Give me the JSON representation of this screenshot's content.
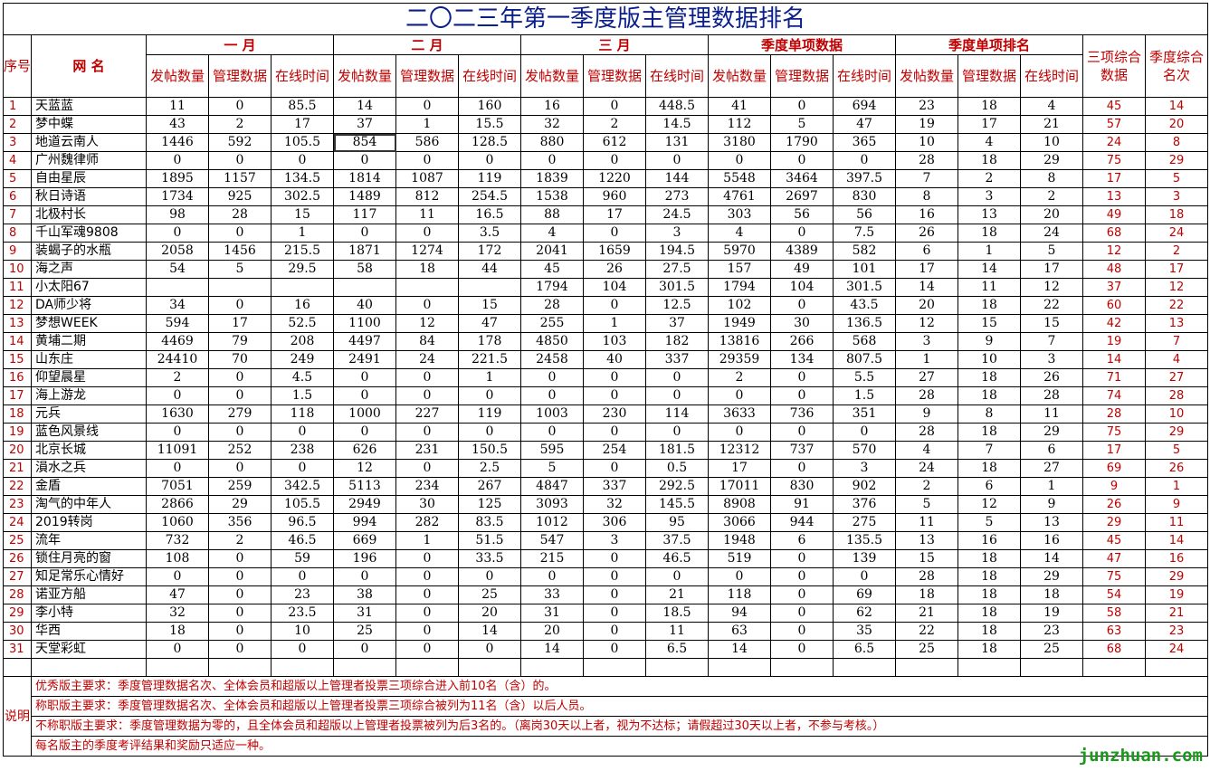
{
  "title": "二〇二三年第一季度版主管理数据排名",
  "headers": {
    "index": "序号",
    "name": "网  名",
    "groups": [
      "一    月",
      "二    月",
      "三    月",
      "季度单项数据",
      "季度单项排名"
    ],
    "composite": "三项综合数据",
    "season_rank": "季度综合名次",
    "sub": [
      "发帖数量",
      "管理数据",
      "在线时间"
    ]
  },
  "rows": [
    [
      "1",
      "天蓝蓝",
      "11",
      "0",
      "85.5",
      "14",
      "0",
      "160",
      "16",
      "0",
      "448.5",
      "41",
      "0",
      "694",
      "23",
      "18",
      "4",
      "45",
      "14"
    ],
    [
      "2",
      "梦中蝶",
      "43",
      "2",
      "17",
      "37",
      "1",
      "15.5",
      "32",
      "2",
      "14.5",
      "112",
      "5",
      "47",
      "19",
      "17",
      "21",
      "57",
      "20"
    ],
    [
      "3",
      "地道云南人",
      "1446",
      "592",
      "105.5",
      "854",
      "586",
      "128.5",
      "880",
      "612",
      "131",
      "3180",
      "1790",
      "365",
      "10",
      "4",
      "10",
      "24",
      "8"
    ],
    [
      "4",
      "广州魏律师",
      "0",
      "0",
      "0",
      "0",
      "0",
      "0",
      "0",
      "0",
      "0",
      "0",
      "0",
      "0",
      "28",
      "18",
      "29",
      "75",
      "29"
    ],
    [
      "5",
      "自由星辰",
      "1895",
      "1157",
      "134.5",
      "1814",
      "1087",
      "119",
      "1839",
      "1220",
      "144",
      "5548",
      "3464",
      "397.5",
      "7",
      "2",
      "8",
      "17",
      "5"
    ],
    [
      "6",
      "秋日诗语",
      "1734",
      "925",
      "302.5",
      "1489",
      "812",
      "254.5",
      "1538",
      "960",
      "273",
      "4761",
      "2697",
      "830",
      "8",
      "3",
      "2",
      "13",
      "3"
    ],
    [
      "7",
      "北极村长",
      "98",
      "28",
      "15",
      "117",
      "11",
      "16.5",
      "88",
      "17",
      "24.5",
      "303",
      "56",
      "56",
      "16",
      "13",
      "20",
      "49",
      "18"
    ],
    [
      "8",
      "千山军魂9808",
      "0",
      "0",
      "1",
      "0",
      "0",
      "3.5",
      "4",
      "0",
      "3",
      "4",
      "0",
      "7.5",
      "26",
      "18",
      "24",
      "68",
      "24"
    ],
    [
      "9",
      "装蝎子的水瓶",
      "2058",
      "1456",
      "215.5",
      "1871",
      "1274",
      "172",
      "2041",
      "1659",
      "194.5",
      "5970",
      "4389",
      "582",
      "6",
      "1",
      "5",
      "12",
      "2"
    ],
    [
      "10",
      "海之声",
      "54",
      "5",
      "29.5",
      "58",
      "18",
      "44",
      "45",
      "26",
      "27.5",
      "157",
      "49",
      "101",
      "17",
      "14",
      "17",
      "48",
      "17"
    ],
    [
      "11",
      "小太阳67",
      "",
      "",
      "",
      "",
      "",
      "",
      "1794",
      "104",
      "301.5",
      "1794",
      "104",
      "301.5",
      "14",
      "11",
      "12",
      "37",
      "12"
    ],
    [
      "12",
      "DA师少将",
      "34",
      "0",
      "16",
      "40",
      "0",
      "15",
      "28",
      "0",
      "12.5",
      "102",
      "0",
      "43.5",
      "20",
      "18",
      "22",
      "60",
      "22"
    ],
    [
      "13",
      "梦想WEEK",
      "594",
      "17",
      "52.5",
      "1100",
      "12",
      "47",
      "255",
      "1",
      "37",
      "1949",
      "30",
      "136.5",
      "12",
      "15",
      "15",
      "42",
      "13"
    ],
    [
      "14",
      "黄埔二期",
      "4469",
      "79",
      "208",
      "4497",
      "84",
      "178",
      "4850",
      "103",
      "182",
      "13816",
      "266",
      "568",
      "3",
      "9",
      "7",
      "19",
      "7"
    ],
    [
      "15",
      "山东庄",
      "24410",
      "70",
      "249",
      "2491",
      "24",
      "221.5",
      "2458",
      "40",
      "337",
      "29359",
      "134",
      "807.5",
      "1",
      "10",
      "3",
      "14",
      "4"
    ],
    [
      "16",
      "仰望晨星",
      "2",
      "0",
      "4.5",
      "0",
      "0",
      "1",
      "0",
      "0",
      "0",
      "2",
      "0",
      "5.5",
      "27",
      "18",
      "26",
      "71",
      "27"
    ],
    [
      "17",
      "海上游龙",
      "0",
      "0",
      "1.5",
      "0",
      "0",
      "0",
      "0",
      "0",
      "0",
      "0",
      "0",
      "1.5",
      "28",
      "18",
      "28",
      "74",
      "28"
    ],
    [
      "18",
      "元兵",
      "1630",
      "279",
      "118",
      "1000",
      "227",
      "119",
      "1003",
      "230",
      "114",
      "3633",
      "736",
      "351",
      "9",
      "8",
      "11",
      "28",
      "10"
    ],
    [
      "19",
      "蓝色风景线",
      "0",
      "0",
      "0",
      "0",
      "0",
      "0",
      "0",
      "0",
      "0",
      "0",
      "0",
      "0",
      "28",
      "18",
      "29",
      "75",
      "29"
    ],
    [
      "20",
      "北京长城",
      "11091",
      "252",
      "238",
      "626",
      "231",
      "150.5",
      "595",
      "254",
      "181.5",
      "12312",
      "737",
      "570",
      "4",
      "7",
      "6",
      "17",
      "5"
    ],
    [
      "21",
      "溳水之兵",
      "0",
      "0",
      "0",
      "12",
      "0",
      "2.5",
      "5",
      "0",
      "0.5",
      "17",
      "0",
      "3",
      "24",
      "18",
      "27",
      "69",
      "26"
    ],
    [
      "22",
      "金盾",
      "7051",
      "259",
      "342.5",
      "5113",
      "234",
      "267",
      "4847",
      "337",
      "292.5",
      "17011",
      "830",
      "902",
      "2",
      "6",
      "1",
      "9",
      "1"
    ],
    [
      "23",
      "淘气的中年人",
      "2866",
      "29",
      "105.5",
      "2949",
      "30",
      "125",
      "3093",
      "32",
      "145.5",
      "8908",
      "91",
      "376",
      "5",
      "12",
      "9",
      "26",
      "9"
    ],
    [
      "24",
      "2019转岗",
      "1060",
      "356",
      "96.5",
      "994",
      "282",
      "83.5",
      "1012",
      "306",
      "95",
      "3066",
      "944",
      "275",
      "11",
      "5",
      "13",
      "29",
      "11"
    ],
    [
      "25",
      "流年",
      "732",
      "2",
      "46.5",
      "669",
      "1",
      "51.5",
      "547",
      "3",
      "37.5",
      "1948",
      "6",
      "135.5",
      "13",
      "16",
      "16",
      "45",
      "14"
    ],
    [
      "26",
      "锁住月亮的窗",
      "108",
      "0",
      "59",
      "196",
      "0",
      "33.5",
      "215",
      "0",
      "46.5",
      "519",
      "0",
      "139",
      "15",
      "18",
      "14",
      "47",
      "16"
    ],
    [
      "27",
      "知足常乐心情好",
      "0",
      "0",
      "0",
      "0",
      "0",
      "0",
      "0",
      "0",
      "0",
      "0",
      "0",
      "0",
      "28",
      "18",
      "29",
      "75",
      "29"
    ],
    [
      "28",
      "诺亚方船",
      "47",
      "0",
      "23",
      "38",
      "0",
      "25",
      "33",
      "0",
      "21",
      "118",
      "0",
      "69",
      "18",
      "18",
      "18",
      "54",
      "19"
    ],
    [
      "29",
      "李小特",
      "32",
      "0",
      "23.5",
      "31",
      "0",
      "20",
      "31",
      "0",
      "18.5",
      "94",
      "0",
      "62",
      "21",
      "18",
      "19",
      "58",
      "21"
    ],
    [
      "30",
      "华西",
      "18",
      "0",
      "10",
      "25",
      "0",
      "14",
      "20",
      "0",
      "11",
      "63",
      "0",
      "35",
      "22",
      "18",
      "23",
      "63",
      "23"
    ],
    [
      "31",
      "天堂彩虹",
      "0",
      "0",
      "0",
      "0",
      "0",
      "0",
      "14",
      "0",
      "6.5",
      "14",
      "0",
      "6.5",
      "25",
      "18",
      "25",
      "68",
      "24"
    ]
  ],
  "notes_label": "说明",
  "notes": [
    "优秀版主要求：季度管理数据名次、全体会员和超版以上管理者投票三项综合进入前10名（含）的。",
    "称职版主要求：季度管理数据名次、全体会员和超版以上管理者投票三项综合被列为11名（含）以后人员。",
    "不称职版主要求：季度管理数据为零的，且全体会员和超版以上管理者投票被列为后3名的。（离岗30天以上者，视为不达标；请假超过30天以上者，不参与考核。）",
    "每名版主的季度考评结果和奖励只适应一种。"
  ],
  "watermark": "junzhuan.com",
  "colors": {
    "accent_red": "#c00000",
    "title_blue": "#0b1f8a",
    "watermark_green": "#1a9a1a"
  }
}
